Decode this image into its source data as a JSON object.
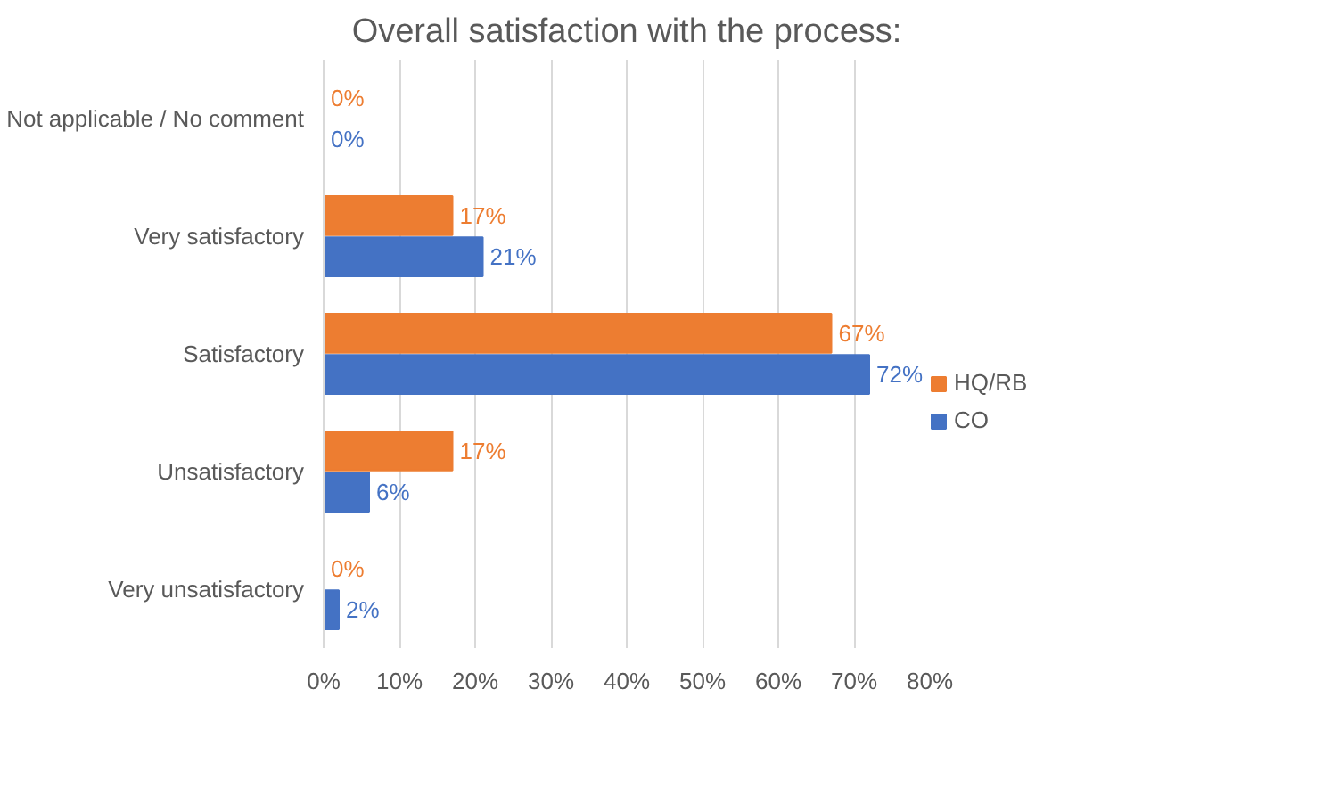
{
  "chart_data": {
    "type": "bar",
    "orientation": "horizontal",
    "title": "Overall satisfaction with the process:",
    "categories": [
      "Not applicable / No comment",
      "Very satisfactory",
      "Satisfactory",
      "Unsatisfactory",
      "Very unsatisfactory"
    ],
    "series": [
      {
        "name": "HQ/RB",
        "color": "#ed7d31",
        "values": [
          0,
          17,
          67,
          17,
          0
        ],
        "value_labels": [
          "0%",
          "17%",
          "67%",
          "17%",
          "0%"
        ]
      },
      {
        "name": "CO",
        "color": "#4472c4",
        "values": [
          0,
          21,
          72,
          6,
          2
        ],
        "value_labels": [
          "0%",
          "21%",
          "72%",
          "6%",
          "2%"
        ]
      }
    ],
    "xlim": [
      0,
      80
    ],
    "xticks": [
      {
        "value": 0,
        "label": "0%"
      },
      {
        "value": 10,
        "label": "10%"
      },
      {
        "value": 20,
        "label": "20%"
      },
      {
        "value": 30,
        "label": "30%"
      },
      {
        "value": 40,
        "label": "40%"
      },
      {
        "value": 50,
        "label": "50%"
      },
      {
        "value": 60,
        "label": "60%"
      },
      {
        "value": 70,
        "label": "70%"
      },
      {
        "value": 80,
        "label": "80%"
      }
    ],
    "grid": "x",
    "legend": "right"
  }
}
